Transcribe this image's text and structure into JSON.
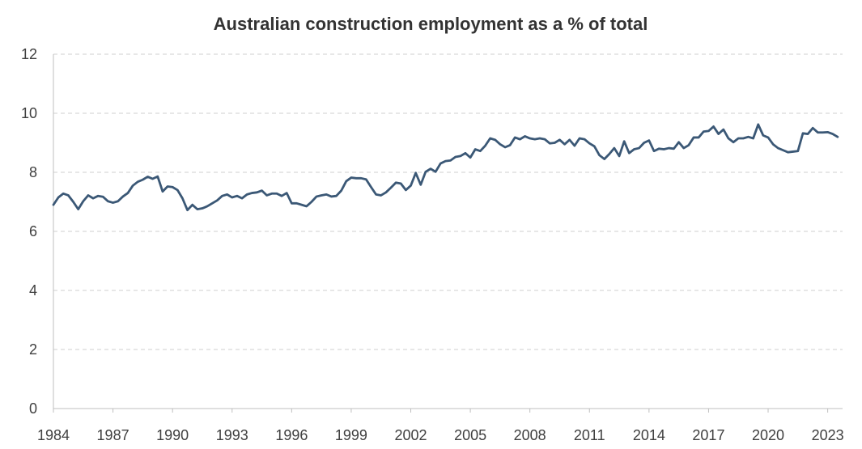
{
  "chart_data": {
    "type": "line",
    "title": "Australian construction employment as a % of total",
    "xlabel": "",
    "ylabel": "",
    "xlim": [
      1984.0,
      2023.75
    ],
    "ylim": [
      0,
      12
    ],
    "y_ticks": [
      0,
      2,
      4,
      6,
      8,
      10,
      12
    ],
    "x_ticks": [
      1984,
      1987,
      1990,
      1993,
      1996,
      1999,
      2002,
      2005,
      2008,
      2011,
      2014,
      2017,
      2020,
      2023
    ],
    "grid": true,
    "legend": "none",
    "series_color": "#3b5876",
    "series": [
      {
        "name": "Construction employment share (%)",
        "points": [
          [
            1984.0,
            6.9
          ],
          [
            1984.25,
            7.15
          ],
          [
            1984.5,
            7.28
          ],
          [
            1984.75,
            7.22
          ],
          [
            1985.0,
            7.0
          ],
          [
            1985.25,
            6.75
          ],
          [
            1985.5,
            7.02
          ],
          [
            1985.75,
            7.22
          ],
          [
            1986.0,
            7.12
          ],
          [
            1986.25,
            7.2
          ],
          [
            1986.5,
            7.17
          ],
          [
            1986.75,
            7.02
          ],
          [
            1987.0,
            6.97
          ],
          [
            1987.25,
            7.02
          ],
          [
            1987.5,
            7.18
          ],
          [
            1987.75,
            7.3
          ],
          [
            1988.0,
            7.55
          ],
          [
            1988.25,
            7.68
          ],
          [
            1988.5,
            7.75
          ],
          [
            1988.75,
            7.85
          ],
          [
            1989.0,
            7.78
          ],
          [
            1989.25,
            7.86
          ],
          [
            1989.5,
            7.35
          ],
          [
            1989.75,
            7.52
          ],
          [
            1990.0,
            7.5
          ],
          [
            1990.25,
            7.4
          ],
          [
            1990.5,
            7.12
          ],
          [
            1990.75,
            6.72
          ],
          [
            1991.0,
            6.9
          ],
          [
            1991.25,
            6.75
          ],
          [
            1991.5,
            6.78
          ],
          [
            1991.75,
            6.85
          ],
          [
            1992.0,
            6.95
          ],
          [
            1992.25,
            7.05
          ],
          [
            1992.5,
            7.2
          ],
          [
            1992.75,
            7.25
          ],
          [
            1993.0,
            7.15
          ],
          [
            1993.25,
            7.2
          ],
          [
            1993.5,
            7.12
          ],
          [
            1993.75,
            7.25
          ],
          [
            1994.0,
            7.3
          ],
          [
            1994.25,
            7.32
          ],
          [
            1994.5,
            7.38
          ],
          [
            1994.75,
            7.22
          ],
          [
            1995.0,
            7.28
          ],
          [
            1995.25,
            7.28
          ],
          [
            1995.5,
            7.2
          ],
          [
            1995.75,
            7.3
          ],
          [
            1996.0,
            6.95
          ],
          [
            1996.25,
            6.95
          ],
          [
            1996.5,
            6.9
          ],
          [
            1996.75,
            6.85
          ],
          [
            1997.0,
            7.0
          ],
          [
            1997.25,
            7.18
          ],
          [
            1997.5,
            7.22
          ],
          [
            1997.75,
            7.25
          ],
          [
            1998.0,
            7.18
          ],
          [
            1998.25,
            7.2
          ],
          [
            1998.5,
            7.38
          ],
          [
            1998.75,
            7.7
          ],
          [
            1999.0,
            7.82
          ],
          [
            1999.25,
            7.8
          ],
          [
            1999.5,
            7.8
          ],
          [
            1999.75,
            7.76
          ],
          [
            2000.0,
            7.5
          ],
          [
            2000.25,
            7.25
          ],
          [
            2000.5,
            7.22
          ],
          [
            2000.75,
            7.32
          ],
          [
            2001.0,
            7.48
          ],
          [
            2001.25,
            7.65
          ],
          [
            2001.5,
            7.62
          ],
          [
            2001.75,
            7.4
          ],
          [
            2002.0,
            7.55
          ],
          [
            2002.25,
            7.98
          ],
          [
            2002.5,
            7.58
          ],
          [
            2002.75,
            8.02
          ],
          [
            2003.0,
            8.12
          ],
          [
            2003.25,
            8.02
          ],
          [
            2003.5,
            8.3
          ],
          [
            2003.75,
            8.38
          ],
          [
            2004.0,
            8.4
          ],
          [
            2004.25,
            8.52
          ],
          [
            2004.5,
            8.55
          ],
          [
            2004.75,
            8.65
          ],
          [
            2005.0,
            8.5
          ],
          [
            2005.25,
            8.78
          ],
          [
            2005.5,
            8.72
          ],
          [
            2005.75,
            8.9
          ],
          [
            2006.0,
            9.15
          ],
          [
            2006.25,
            9.1
          ],
          [
            2006.5,
            8.95
          ],
          [
            2006.75,
            8.85
          ],
          [
            2007.0,
            8.92
          ],
          [
            2007.25,
            9.18
          ],
          [
            2007.5,
            9.12
          ],
          [
            2007.75,
            9.22
          ],
          [
            2008.0,
            9.15
          ],
          [
            2008.25,
            9.12
          ],
          [
            2008.5,
            9.15
          ],
          [
            2008.75,
            9.12
          ],
          [
            2009.0,
            8.98
          ],
          [
            2009.25,
            9.0
          ],
          [
            2009.5,
            9.1
          ],
          [
            2009.75,
            8.95
          ],
          [
            2010.0,
            9.1
          ],
          [
            2010.25,
            8.9
          ],
          [
            2010.5,
            9.15
          ],
          [
            2010.75,
            9.12
          ],
          [
            2011.0,
            8.98
          ],
          [
            2011.25,
            8.88
          ],
          [
            2011.5,
            8.58
          ],
          [
            2011.75,
            8.45
          ],
          [
            2012.0,
            8.62
          ],
          [
            2012.25,
            8.82
          ],
          [
            2012.5,
            8.55
          ],
          [
            2012.75,
            9.05
          ],
          [
            2013.0,
            8.65
          ],
          [
            2013.25,
            8.78
          ],
          [
            2013.5,
            8.82
          ],
          [
            2013.75,
            9.0
          ],
          [
            2014.0,
            9.08
          ],
          [
            2014.25,
            8.72
          ],
          [
            2014.5,
            8.8
          ],
          [
            2014.75,
            8.78
          ],
          [
            2015.0,
            8.82
          ],
          [
            2015.25,
            8.8
          ],
          [
            2015.5,
            9.02
          ],
          [
            2015.75,
            8.82
          ],
          [
            2016.0,
            8.92
          ],
          [
            2016.25,
            9.18
          ],
          [
            2016.5,
            9.18
          ],
          [
            2016.75,
            9.38
          ],
          [
            2017.0,
            9.4
          ],
          [
            2017.25,
            9.55
          ],
          [
            2017.5,
            9.3
          ],
          [
            2017.75,
            9.45
          ],
          [
            2018.0,
            9.15
          ],
          [
            2018.25,
            9.02
          ],
          [
            2018.5,
            9.15
          ],
          [
            2018.75,
            9.15
          ],
          [
            2019.0,
            9.2
          ],
          [
            2019.25,
            9.15
          ],
          [
            2019.5,
            9.62
          ],
          [
            2019.75,
            9.25
          ],
          [
            2020.0,
            9.18
          ],
          [
            2020.25,
            8.95
          ],
          [
            2020.5,
            8.82
          ],
          [
            2020.75,
            8.75
          ],
          [
            2021.0,
            8.68
          ],
          [
            2021.25,
            8.7
          ],
          [
            2021.5,
            8.72
          ],
          [
            2021.75,
            9.32
          ],
          [
            2022.0,
            9.3
          ],
          [
            2022.25,
            9.5
          ],
          [
            2022.5,
            9.35
          ],
          [
            2022.75,
            9.35
          ],
          [
            2023.0,
            9.36
          ],
          [
            2023.25,
            9.3
          ],
          [
            2023.5,
            9.2
          ]
        ]
      }
    ]
  }
}
